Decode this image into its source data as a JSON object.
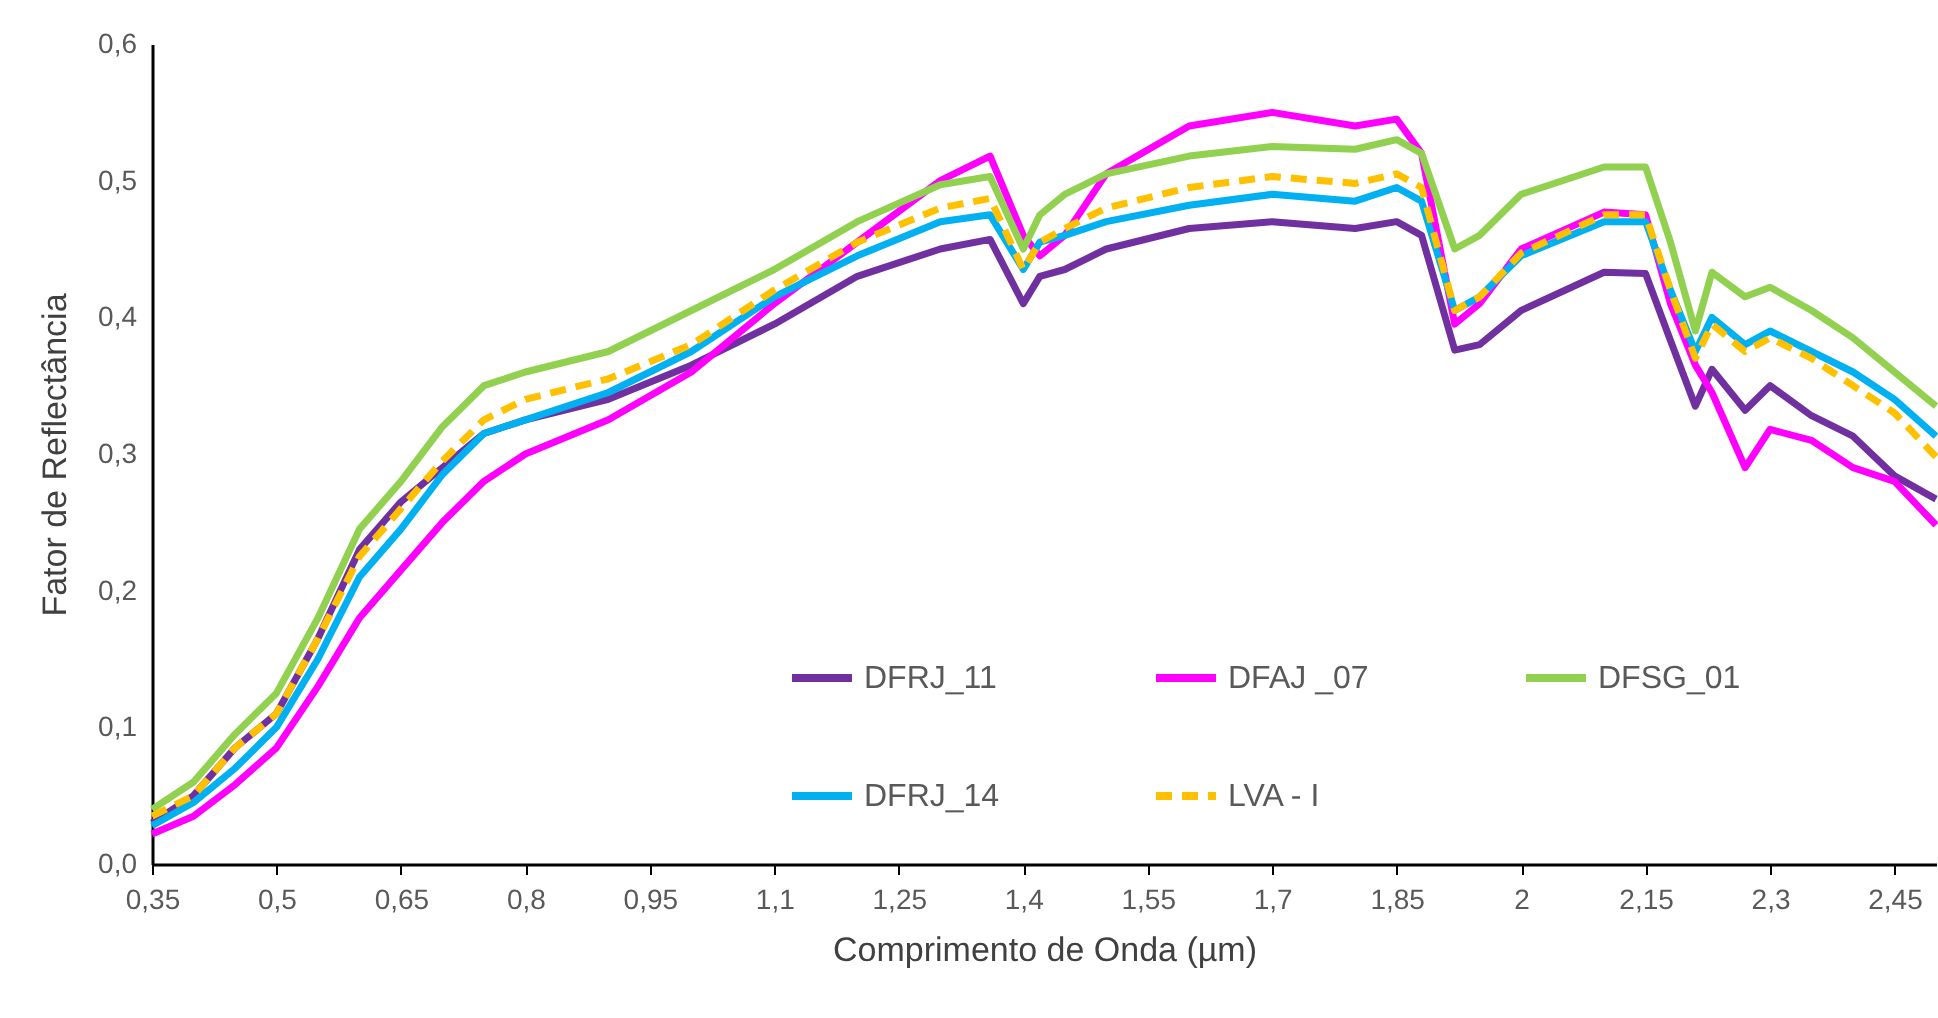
{
  "chart_data": {
    "type": "line",
    "xlabel": "Comprimento de Onda (µm)",
    "ylabel": "Fator de Reflectância",
    "x": [
      0.35,
      0.4,
      0.45,
      0.5,
      0.55,
      0.6,
      0.65,
      0.7,
      0.75,
      0.8,
      0.9,
      1.0,
      1.1,
      1.2,
      1.3,
      1.36,
      1.4,
      1.42,
      1.45,
      1.5,
      1.6,
      1.7,
      1.8,
      1.85,
      1.88,
      1.92,
      1.95,
      2.0,
      2.1,
      2.15,
      2.18,
      2.21,
      2.23,
      2.27,
      2.3,
      2.35,
      2.4,
      2.45,
      2.5
    ],
    "series": [
      {
        "name": "DFRJ_11",
        "color": "#7030a0",
        "line_style": "solid",
        "values": [
          0.03,
          0.05,
          0.085,
          0.11,
          0.165,
          0.23,
          0.265,
          0.29,
          0.315,
          0.325,
          0.34,
          0.365,
          0.395,
          0.43,
          0.45,
          0.457,
          0.41,
          0.43,
          0.435,
          0.45,
          0.465,
          0.47,
          0.465,
          0.47,
          0.46,
          0.376,
          0.38,
          0.405,
          0.433,
          0.432,
          0.383,
          0.335,
          0.362,
          0.332,
          0.35,
          0.328,
          0.313,
          0.284,
          0.267
        ]
      },
      {
        "name": "DFAJ _07",
        "color": "#ff00ff",
        "line_style": "solid",
        "values": [
          0.022,
          0.035,
          0.058,
          0.085,
          0.13,
          0.18,
          0.215,
          0.25,
          0.28,
          0.3,
          0.325,
          0.36,
          0.41,
          0.455,
          0.5,
          0.518,
          0.46,
          0.445,
          0.46,
          0.505,
          0.54,
          0.55,
          0.54,
          0.545,
          0.52,
          0.395,
          0.41,
          0.45,
          0.477,
          0.475,
          0.41,
          0.365,
          0.345,
          0.29,
          0.318,
          0.31,
          0.29,
          0.28,
          0.248
        ]
      },
      {
        "name": "DFSG_01",
        "color": "#92d050",
        "line_style": "solid",
        "values": [
          0.04,
          0.06,
          0.095,
          0.125,
          0.18,
          0.245,
          0.28,
          0.32,
          0.35,
          0.36,
          0.375,
          0.405,
          0.435,
          0.47,
          0.497,
          0.503,
          0.45,
          0.475,
          0.49,
          0.505,
          0.518,
          0.525,
          0.523,
          0.53,
          0.52,
          0.45,
          0.46,
          0.49,
          0.51,
          0.51,
          0.455,
          0.39,
          0.433,
          0.415,
          0.422,
          0.405,
          0.385,
          0.36,
          0.335
        ]
      },
      {
        "name": "DFRJ_14",
        "color": "#00b0f0",
        "line_style": "solid",
        "values": [
          0.028,
          0.045,
          0.07,
          0.1,
          0.15,
          0.21,
          0.245,
          0.285,
          0.315,
          0.325,
          0.345,
          0.375,
          0.415,
          0.445,
          0.47,
          0.475,
          0.435,
          0.455,
          0.46,
          0.47,
          0.482,
          0.49,
          0.485,
          0.495,
          0.485,
          0.405,
          0.415,
          0.445,
          0.47,
          0.47,
          0.42,
          0.375,
          0.4,
          0.38,
          0.39,
          0.375,
          0.36,
          0.34,
          0.313
        ]
      },
      {
        "name": "LVA - I",
        "color": "#ffc000",
        "line_style": "dashed",
        "values": [
          0.035,
          0.05,
          0.085,
          0.11,
          0.165,
          0.225,
          0.26,
          0.295,
          0.325,
          0.34,
          0.355,
          0.38,
          0.42,
          0.455,
          0.48,
          0.487,
          0.435,
          0.455,
          0.465,
          0.48,
          0.495,
          0.503,
          0.498,
          0.505,
          0.495,
          0.405,
          0.415,
          0.447,
          0.475,
          0.475,
          0.42,
          0.37,
          0.395,
          0.375,
          0.385,
          0.37,
          0.35,
          0.33,
          0.298
        ]
      }
    ],
    "xlim": [
      0.35,
      2.5
    ],
    "xticks": [
      {
        "value": 0.35,
        "label": "0,35"
      },
      {
        "value": 0.5,
        "label": "0,5"
      },
      {
        "value": 0.65,
        "label": "0,65"
      },
      {
        "value": 0.8,
        "label": "0,8"
      },
      {
        "value": 0.95,
        "label": "0,95"
      },
      {
        "value": 1.1,
        "label": "1,1"
      },
      {
        "value": 1.25,
        "label": "1,25"
      },
      {
        "value": 1.4,
        "label": "1,4"
      },
      {
        "value": 1.55,
        "label": "1,55"
      },
      {
        "value": 1.7,
        "label": "1,7"
      },
      {
        "value": 1.85,
        "label": "1,85"
      },
      {
        "value": 2,
        "label": "2"
      },
      {
        "value": 2.15,
        "label": "2,15"
      },
      {
        "value": 2.3,
        "label": "2,3"
      },
      {
        "value": 2.45,
        "label": "2,45"
      }
    ],
    "ylim": [
      0,
      0.6
    ],
    "yticks": [
      {
        "value": 0,
        "label": "0,0"
      },
      {
        "value": 0.1,
        "label": "0,1"
      },
      {
        "value": 0.2,
        "label": "0,2"
      },
      {
        "value": 0.3,
        "label": "0,3"
      },
      {
        "value": 0.4,
        "label": "0,4"
      },
      {
        "value": 0.5,
        "label": "0,5"
      },
      {
        "value": 0.6,
        "label": "0,6"
      }
    ],
    "grid": false,
    "legend": "bottom right",
    "marker": "none"
  }
}
